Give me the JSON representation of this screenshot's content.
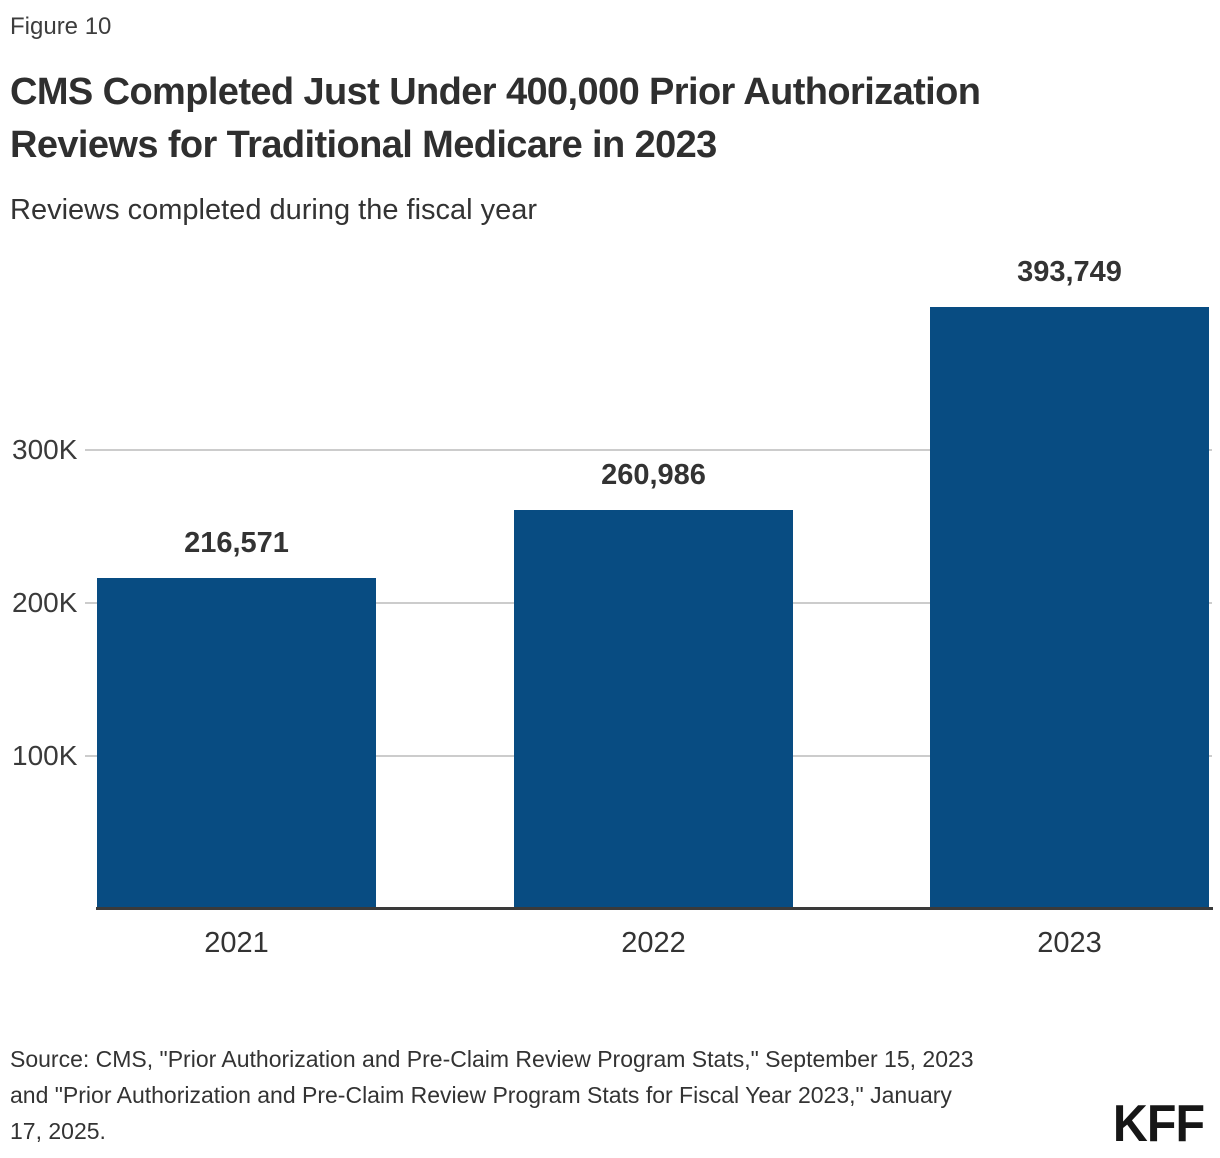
{
  "figure_label": "Figure 10",
  "title_lines": [
    "CMS Completed Just Under 400,000 Prior Authorization",
    "Reviews for Traditional Medicare in 2023"
  ],
  "subtitle": "Reviews completed during the fiscal year",
  "chart_data": {
    "type": "bar",
    "title": "CMS Completed Just Under 400,000 Prior Authorization Reviews for Traditional Medicare in 2023",
    "subtitle": "Reviews completed during the fiscal year",
    "categories": [
      "2021",
      "2022",
      "2023"
    ],
    "values": [
      216571,
      260986,
      393749
    ],
    "value_labels": [
      "216,571",
      "260,986",
      "393,749"
    ],
    "y_ticks": [
      {
        "value": 100000,
        "label": "100K"
      },
      {
        "value": 200000,
        "label": "200K"
      },
      {
        "value": 300000,
        "label": "300K"
      }
    ],
    "ylim": [
      0,
      437000
    ],
    "xlabel": "",
    "ylabel": "",
    "grid": true,
    "legend_position": "none",
    "bar_color": "#084c82",
    "gridline_color": "#cccccc",
    "axis_color": "#3a3a3a",
    "label_color": "#333333"
  },
  "source_lines": [
    "Source: CMS, \"Prior Authorization and Pre-Claim Review Program Stats,\" September 15, 2023",
    "and \"Prior Authorization and Pre-Claim Review Program Stats for Fiscal Year 2023,\" January",
    "17, 2025."
  ],
  "logo": "KFF"
}
